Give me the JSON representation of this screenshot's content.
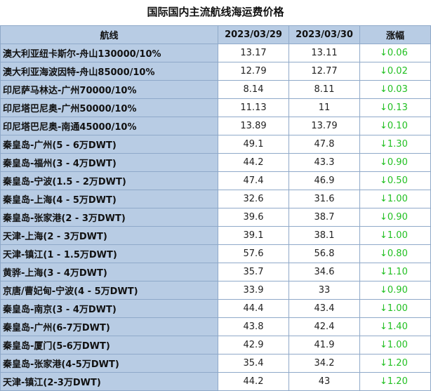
{
  "title": "国际国内主流航线海运费价格",
  "headers": [
    "航线",
    "2023/03/29",
    "2023/03/30",
    "涨幅"
  ],
  "rows": [
    {
      "route": "澳大利亚纽卡斯尔-舟山130000/10%",
      "d1": "13.17",
      "d2": "13.11",
      "chg": "↓0.06"
    },
    {
      "route": "澳大利亚海波因特-舟山85000/10%",
      "d1": "12.79",
      "d2": "12.77",
      "chg": "↓0.02"
    },
    {
      "route": "印尼萨马林达-广州70000/10%",
      "d1": "8.14",
      "d2": "8.11",
      "chg": "↓0.03"
    },
    {
      "route": "印尼塔巴尼奥-广州50000/10%",
      "d1": "11.13",
      "d2": "11",
      "chg": "↓0.13"
    },
    {
      "route": "印尼塔巴尼奥-南通45000/10%",
      "d1": "13.89",
      "d2": "13.79",
      "chg": "↓0.10"
    },
    {
      "route": "秦皇岛-广州(5 - 6万DWT)",
      "d1": "49.1",
      "d2": "47.8",
      "chg": "↓1.30"
    },
    {
      "route": "秦皇岛-福州(3 - 4万DWT)",
      "d1": "44.2",
      "d2": "43.3",
      "chg": "↓0.90"
    },
    {
      "route": "秦皇岛-宁波(1.5 - 2万DWT)",
      "d1": "47.4",
      "d2": "46.9",
      "chg": "↓0.50"
    },
    {
      "route": "秦皇岛-上海(4 - 5万DWT)",
      "d1": "32.6",
      "d2": "31.6",
      "chg": "↓1.00"
    },
    {
      "route": "秦皇岛-张家港(2 - 3万DWT)",
      "d1": "39.6",
      "d2": "38.7",
      "chg": "↓0.90"
    },
    {
      "route": "天津-上海(2 - 3万DWT)",
      "d1": "39.1",
      "d2": "38.1",
      "chg": "↓1.00"
    },
    {
      "route": "天津-镇江(1 - 1.5万DWT)",
      "d1": "57.6",
      "d2": "56.8",
      "chg": "↓0.80"
    },
    {
      "route": "黄骅-上海(3 - 4万DWT)",
      "d1": "35.7",
      "d2": "34.6",
      "chg": "↓1.10"
    },
    {
      "route": "京唐/曹妃甸-宁波(4 - 5万DWT)",
      "d1": "33.9",
      "d2": "33",
      "chg": "↓0.90"
    },
    {
      "route": "秦皇岛-南京(3 - 4万DWT)",
      "d1": "44.4",
      "d2": "43.4",
      "chg": "↓1.00"
    },
    {
      "route": "秦皇岛-广州(6-7万DWT)",
      "d1": "43.8",
      "d2": "42.4",
      "chg": "↓1.40"
    },
    {
      "route": "秦皇岛-厦门(5-6万DWT)",
      "d1": "42.9",
      "d2": "41.9",
      "chg": "↓1.00"
    },
    {
      "route": "秦皇岛-张家港(4-5万DWT)",
      "d1": "35.4",
      "d2": "34.2",
      "chg": "↓1.20"
    },
    {
      "route": "天津-镇江(2-3万DWT)",
      "d1": "44.2",
      "d2": "43",
      "chg": "↓1.20"
    }
  ],
  "colors": {
    "header_bg": "#b8cce4",
    "down": "#22c022",
    "border": "#8fa9c9"
  }
}
